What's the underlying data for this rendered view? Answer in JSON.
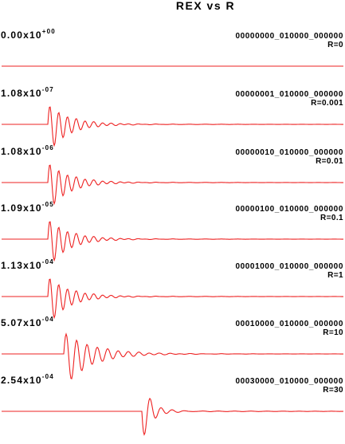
{
  "chart_data": {
    "type": "line",
    "title": "REX vs R",
    "line_color": "#ee2222",
    "background": "#ffffff",
    "traces": [
      {
        "code": "00000000_010000_000000",
        "r_label": "R=0",
        "peak_mantissa": "0.00x10",
        "peak_exponent": "+00",
        "shape": "flat"
      },
      {
        "code": "00000001_010000_000000",
        "r_label": "R=0.001",
        "peak_mantissa": "1.08x10",
        "peak_exponent": "-07",
        "shape": "early"
      },
      {
        "code": "00000010_010000_000000",
        "r_label": "R=0.01",
        "peak_mantissa": "1.08x10",
        "peak_exponent": "-06",
        "shape": "early"
      },
      {
        "code": "00000100_010000_000000",
        "r_label": "R=0.1",
        "peak_mantissa": "1.09x10",
        "peak_exponent": "-05",
        "shape": "early"
      },
      {
        "code": "00001000_010000_000000",
        "r_label": "R=1",
        "peak_mantissa": "1.13x10",
        "peak_exponent": "-04",
        "shape": "early"
      },
      {
        "code": "00010000_010000_000000",
        "r_label": "R=10",
        "peak_mantissa": "5.07x10",
        "peak_exponent": "-04",
        "shape": "mid"
      },
      {
        "code": "00030000_010000_000000",
        "r_label": "R=30",
        "peak_mantissa": "2.54x10",
        "peak_exponent": "-04",
        "shape": "late"
      }
    ]
  }
}
